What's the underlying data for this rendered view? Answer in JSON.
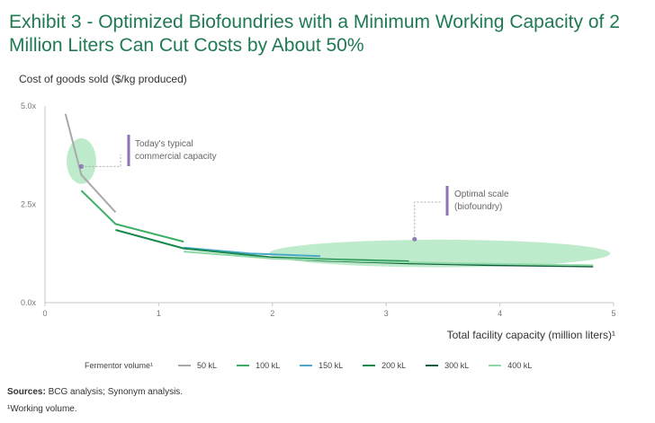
{
  "title": "Exhibit 3 - Optimized Biofoundries with a Minimum Working Capacity of 2 Million Liters Can Cut Costs by About 50%",
  "chart_data": {
    "type": "line",
    "title": "Exhibit 3 - Optimized Biofoundries with a Minimum Working Capacity of 2 Million Liters Can Cut Costs by About 50%",
    "ylabel": "Cost of goods sold ($/kg produced)",
    "xlabel": "Total facility capacity (million liters)¹",
    "xlim": [
      0,
      5
    ],
    "ylim": [
      0,
      5
    ],
    "xticks": [
      "0",
      "1",
      "2",
      "3",
      "4",
      "5"
    ],
    "yticks": [
      "0.0x",
      "2.5x",
      "5.0x"
    ],
    "series": [
      {
        "name": "50 kL",
        "color": "#a9a9a9",
        "x": [
          0.18,
          0.32,
          0.62
        ],
        "y": [
          4.8,
          3.25,
          2.3
        ]
      },
      {
        "name": "100 kL",
        "color": "#3cae63",
        "x": [
          0.32,
          0.62,
          1.22
        ],
        "y": [
          2.85,
          2.0,
          1.55
        ]
      },
      {
        "name": "150 kL",
        "color": "#4aa7c9",
        "x": [
          1.22,
          1.8,
          2.42
        ],
        "y": [
          1.4,
          1.25,
          1.18
        ]
      },
      {
        "name": "200 kL",
        "color": "#178a4c",
        "x": [
          0.62,
          1.22,
          2.0,
          2.5,
          3.2
        ],
        "y": [
          1.85,
          1.38,
          1.15,
          1.1,
          1.05
        ]
      },
      {
        "name": "300 kL",
        "color": "#0e5c3a",
        "x": [
          1.8,
          2.42,
          3.2,
          4.0,
          4.82
        ],
        "y": [
          1.17,
          1.07,
          1.0,
          0.95,
          0.92
        ]
      },
      {
        "name": "400 kL",
        "color": "#8fd9a6",
        "x": [
          1.22,
          2.0,
          2.8,
          3.6,
          4.82
        ],
        "y": [
          1.3,
          1.12,
          1.05,
          1.0,
          0.95
        ]
      }
    ],
    "highlights": [
      {
        "label": "Today's typical commercial capacity",
        "cx": 0.32,
        "cy": 3.6,
        "rx": 0.13,
        "ry": 0.58
      },
      {
        "label": "Optimal scale (biofoundry)",
        "cx": 3.47,
        "cy": 1.25,
        "rx": 1.5,
        "ry": 0.35
      }
    ]
  },
  "annotations": {
    "current_line1": "Today's typical",
    "current_line2": "commercial capacity",
    "optimal_line1": "Optimal scale",
    "optimal_line2": "(biofoundry)"
  },
  "legend": {
    "title": "Fermentor volume¹",
    "items": [
      {
        "label": "50 kL",
        "color": "#a9a9a9"
      },
      {
        "label": "100 kL",
        "color": "#3cae63"
      },
      {
        "label": "150 kL",
        "color": "#4aa7c9"
      },
      {
        "label": "200 kL",
        "color": "#178a4c"
      },
      {
        "label": "300 kL",
        "color": "#0e5c3a"
      },
      {
        "label": "400 kL",
        "color": "#8fd9a6"
      }
    ]
  },
  "footer": {
    "sources_label": "Sources:",
    "sources_text": " BCG analysis; Synonym analysis.",
    "footnote": "¹Working volume."
  }
}
